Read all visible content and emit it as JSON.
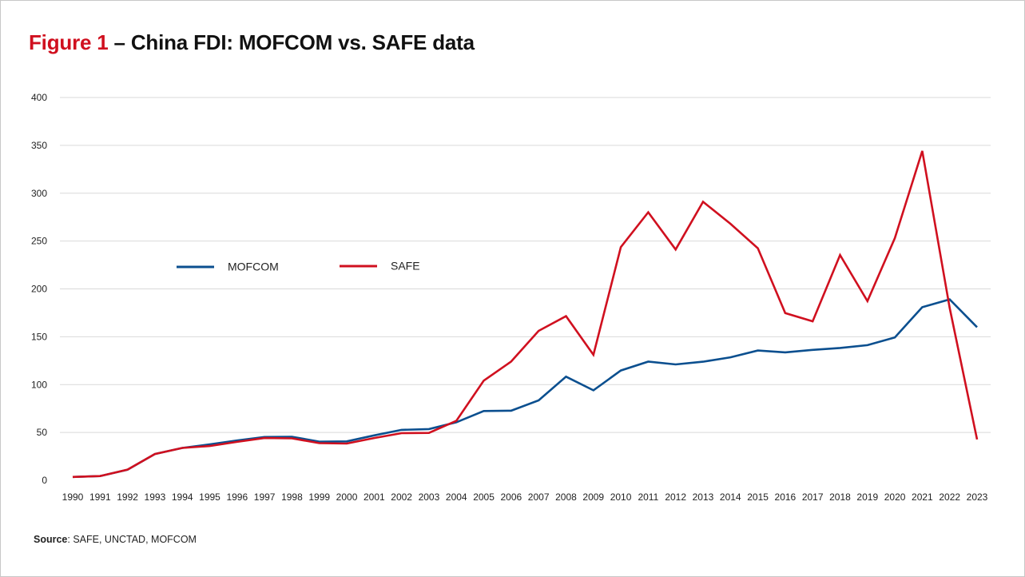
{
  "title": {
    "prefix": "Figure 1",
    "rest": " – China FDI: MOFCOM vs. SAFE data"
  },
  "source": {
    "label": "Source",
    "text": ": SAFE, UNCTAD, MOFCOM"
  },
  "colors": {
    "accent": "#d0101f",
    "mofcom": "#0b4f8f",
    "safe": "#d0101f",
    "grid": "#d9d9d9"
  },
  "chart_data": {
    "type": "line",
    "title": "",
    "xlabel": "",
    "ylabel": "",
    "ylim": [
      0,
      400
    ],
    "yticks": [
      0,
      50,
      100,
      150,
      200,
      250,
      300,
      350,
      400
    ],
    "grid": "horizontal",
    "legend": "upper-left, inside plot",
    "x": [
      "1990",
      "1991",
      "1992",
      "1993",
      "1994",
      "1995",
      "1996",
      "1997",
      "1998",
      "1999",
      "2000",
      "2001",
      "2002",
      "2003",
      "2004",
      "2005",
      "2006",
      "2007",
      "2008",
      "2009",
      "2010",
      "2011",
      "2012",
      "2013",
      "2014",
      "2015",
      "2016",
      "2017",
      "2018",
      "2019",
      "2020",
      "2021",
      "2022",
      "2023"
    ],
    "series": [
      {
        "name": "MOFCOM",
        "color": "#0b4f8f",
        "values": [
          3.5,
          4.4,
          11.0,
          27.5,
          33.8,
          37.5,
          41.7,
          45.3,
          45.5,
          40.3,
          40.7,
          46.9,
          52.7,
          53.5,
          60.6,
          72.4,
          72.7,
          83.5,
          108.3,
          94.0,
          114.7,
          124.0,
          121.1,
          123.9,
          128.5,
          135.6,
          133.7,
          136.3,
          138.3,
          141.2,
          149.3,
          180.9,
          189.1,
          160.0
        ]
      },
      {
        "name": "SAFE",
        "color": "#d0101f",
        "values": [
          3.5,
          4.4,
          11.2,
          27.5,
          33.8,
          35.8,
          40.2,
          44.2,
          43.8,
          38.8,
          38.4,
          44.2,
          49.3,
          49.5,
          62.1,
          104.1,
          124.1,
          156.2,
          171.5,
          131.1,
          243.7,
          280.1,
          241.2,
          291.0,
          268.1,
          242.5,
          174.7,
          166.1,
          235.4,
          187.2,
          253.1,
          344.1,
          180.2,
          42.7
        ]
      }
    ]
  }
}
